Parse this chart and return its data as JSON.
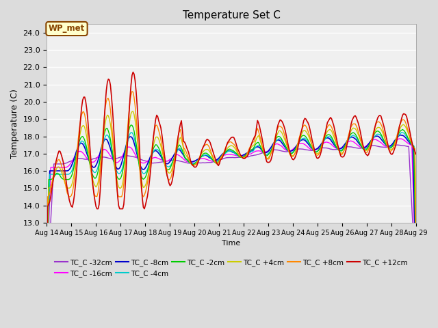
{
  "title": "Temperature Set C",
  "xlabel": "Time",
  "ylabel": "Temperature (C)",
  "ylim": [
    13.0,
    24.5
  ],
  "yticks": [
    13.0,
    14.0,
    15.0,
    16.0,
    17.0,
    18.0,
    19.0,
    20.0,
    21.0,
    22.0,
    23.0,
    24.0
  ],
  "x_labels": [
    "Aug 14",
    "Aug 15",
    "Aug 16",
    "Aug 17",
    "Aug 18",
    "Aug 19",
    "Aug 20",
    "Aug 21",
    "Aug 22",
    "Aug 23",
    "Aug 24",
    "Aug 25",
    "Aug 26",
    "Aug 27",
    "Aug 28",
    "Aug 29"
  ],
  "bg_color": "#dcdcdc",
  "plot_bg_color": "#f0f0f0",
  "series": [
    {
      "label": "TC_C -32cm",
      "color": "#9933cc",
      "linewidth": 1.0
    },
    {
      "label": "TC_C -16cm",
      "color": "#ff00ff",
      "linewidth": 1.0
    },
    {
      "label": "TC_C -8cm",
      "color": "#0000cc",
      "linewidth": 1.2
    },
    {
      "label": "TC_C -4cm",
      "color": "#00cccc",
      "linewidth": 1.0
    },
    {
      "label": "TC_C -2cm",
      "color": "#00cc00",
      "linewidth": 1.0
    },
    {
      "label": "TC_C +4cm",
      "color": "#cccc00",
      "linewidth": 1.0
    },
    {
      "label": "TC_C +8cm",
      "color": "#ff8800",
      "linewidth": 1.0
    },
    {
      "label": "TC_C +12cm",
      "color": "#cc0000",
      "linewidth": 1.2
    }
  ],
  "wp_met_box_color": "#ffffcc",
  "wp_met_border_color": "#884400",
  "wp_met_text_color": "#884400"
}
